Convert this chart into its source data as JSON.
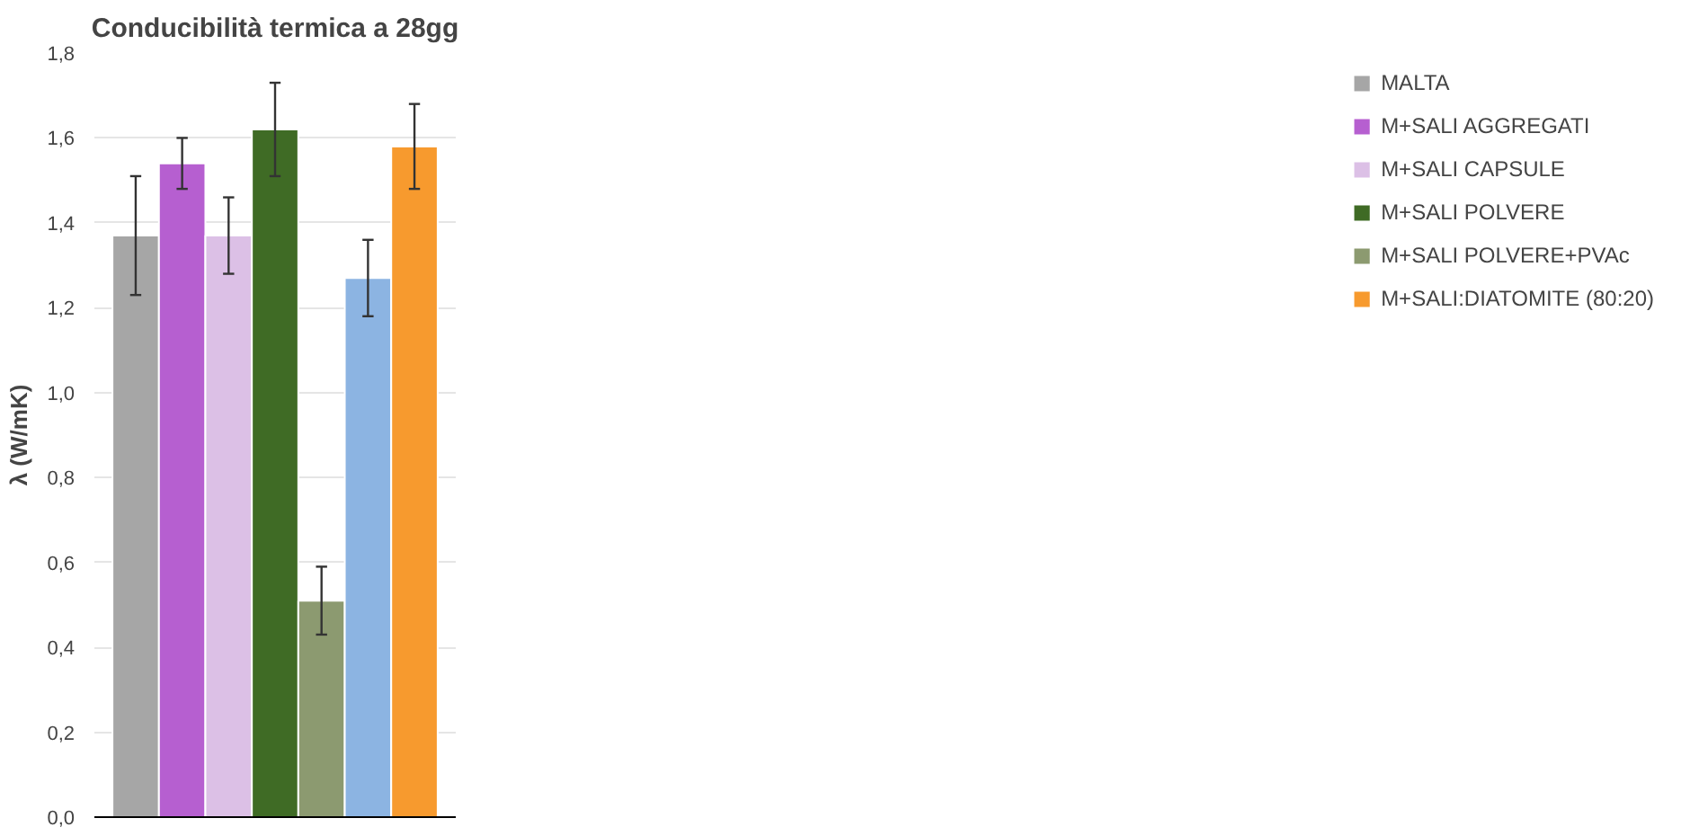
{
  "chart_data": {
    "type": "bar",
    "title": "Conducibilità termica a 28gg",
    "ylabel": "λ (W/mK)",
    "categories": [
      null
    ],
    "series": [
      {
        "name": "MALTA",
        "color": "#a6a6a6",
        "values": [
          1.37
        ],
        "errors": [
          0.14
        ]
      },
      {
        "name": "M+SALI AGGREGATI",
        "color": "#b65fd0",
        "values": [
          1.54
        ],
        "errors": [
          0.06
        ]
      },
      {
        "name": "M+SALI CAPSULE",
        "color": "#dcc0e6",
        "values": [
          1.37
        ],
        "errors": [
          0.09
        ]
      },
      {
        "name": "M+SALI POLVERE",
        "color": "#3f6b25",
        "values": [
          1.62
        ],
        "errors": [
          0.11
        ]
      },
      {
        "name": "M+SALI POLVERE+PVAc",
        "color": "#8c9a70",
        "values": [
          0.51
        ],
        "errors": [
          0.08
        ]
      },
      {
        "color": "#8cb4e2",
        "values": [
          1.27
        ],
        "errors": [
          0.09
        ]
      },
      {
        "name": "M+SALI:DIATOMITE (80:20)",
        "color": "#f79a2e",
        "values": [
          1.58
        ],
        "errors": [
          0.1
        ]
      }
    ],
    "ylim": [
      0,
      1.8
    ],
    "yticks": [
      {
        "value": 0,
        "label": "0,0"
      },
      {
        "value": 0.2,
        "label": "0,2"
      },
      {
        "value": 0.4,
        "label": "0,4"
      },
      {
        "value": 0.6,
        "label": "0,6"
      },
      {
        "value": 0.8,
        "label": "0,8"
      },
      {
        "value": 1.0,
        "label": "1,0"
      },
      {
        "value": 1.2,
        "label": "1,2"
      },
      {
        "value": 1.4,
        "label": "1,4"
      },
      {
        "value": 1.6,
        "label": "1,6"
      },
      {
        "value": 1.8,
        "label": "1,8"
      }
    ],
    "grid": "y",
    "legend": "right"
  }
}
